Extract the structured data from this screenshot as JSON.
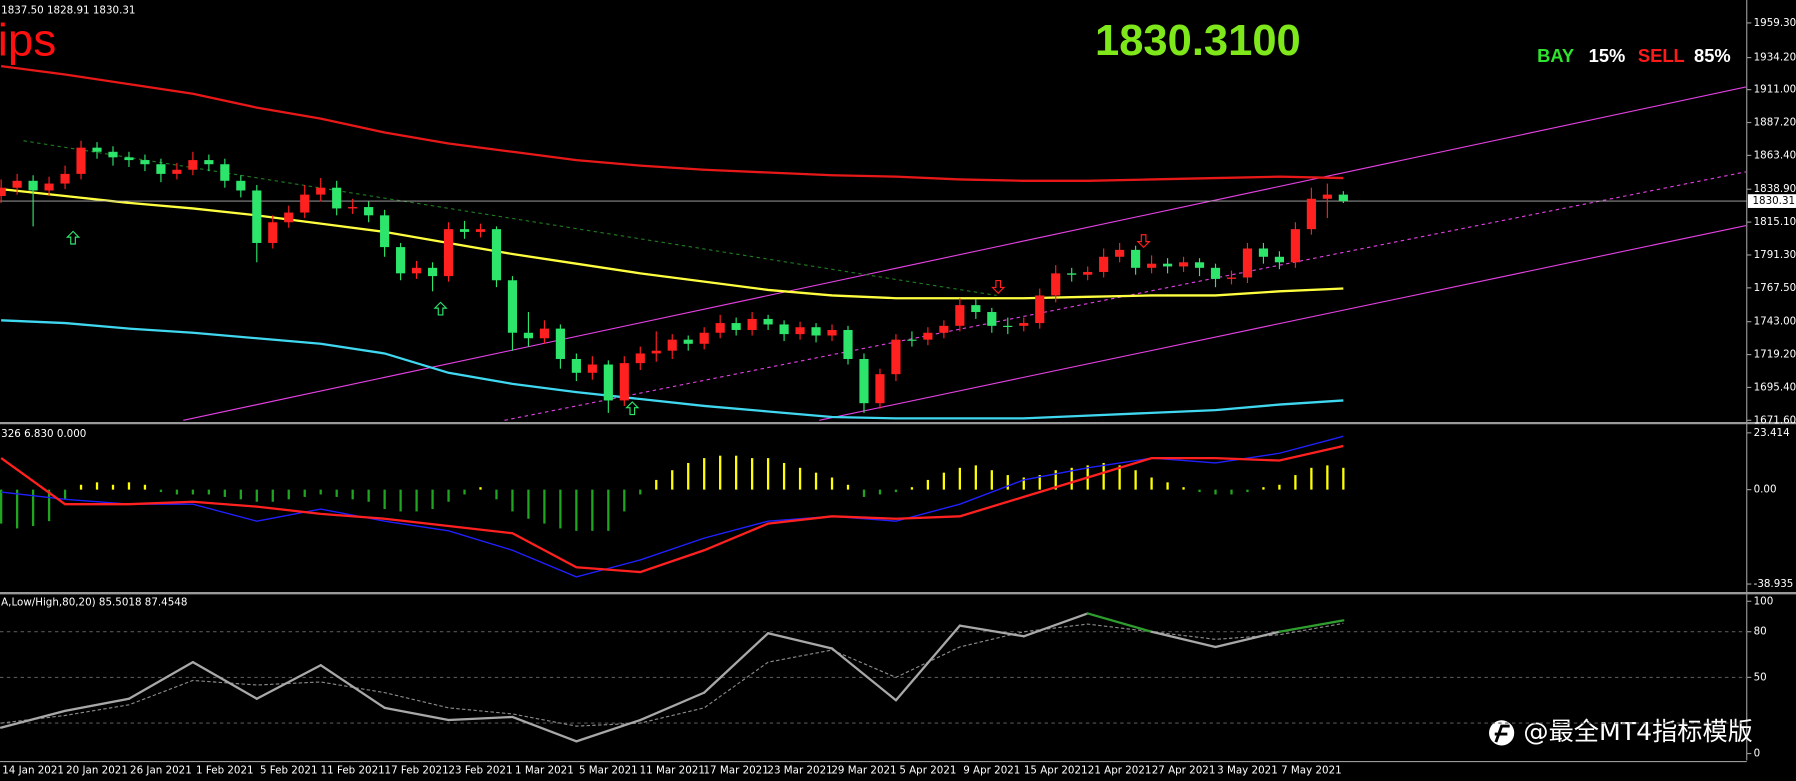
{
  "chart_data": [
    {
      "type": "candlestick",
      "info": "1837.50 1828.91 1830.31",
      "label": "ips",
      "price_text": "1830.3100",
      "buy_label": "BAY",
      "buy_pct": "15%",
      "sell_label": "SELL",
      "sell_pct": "85%",
      "watermark": "@最全MT4指标模版",
      "categories": [
        null,
        null,
        "14 Jan 2021",
        null,
        null,
        null,
        "20 Jan 2021",
        null,
        null,
        null,
        "26 Jan 2021",
        null,
        null,
        null,
        "1 Feb 2021",
        null,
        null,
        null,
        "5 Feb 2021",
        null,
        null,
        null,
        "11 Feb 2021",
        null,
        null,
        null,
        "17 Feb 2021",
        null,
        null,
        null,
        "23 Feb 2021",
        null,
        null,
        null,
        "1 Mar 2021",
        null,
        null,
        null,
        "5 Mar 2021",
        null,
        null,
        null,
        "11 Mar 2021",
        null,
        null,
        null,
        "17 Mar 2021",
        null,
        null,
        null,
        "23 Mar 2021",
        null,
        null,
        null,
        "29 Mar 2021",
        null,
        null,
        null,
        "5 Apr 2021",
        null,
        null,
        null,
        "9 Apr 2021",
        null,
        null,
        null,
        "15 Apr 2021",
        null,
        null,
        null,
        "21 Apr 2021",
        null,
        null,
        null,
        "27 Apr 2021",
        null,
        null,
        null,
        "3 May 2021",
        null,
        null,
        null,
        "7 May 2021",
        null,
        null
      ],
      "open": [
        1834,
        1840,
        1845,
        1838,
        1843,
        1850,
        1869,
        1866,
        1862,
        1860,
        1857,
        1850,
        1853,
        1860,
        1857,
        1845,
        1838,
        1800,
        1815,
        1822,
        1835,
        1840,
        1825,
        1826,
        1820,
        1797,
        1778,
        1782,
        1776,
        1810,
        1808,
        1810,
        1773,
        1735,
        1731,
        1738,
        1716,
        1706,
        1712,
        1686,
        1713,
        1720,
        1722,
        1730,
        1727,
        1735,
        1742,
        1737,
        1745,
        1741,
        1734,
        1739,
        1733,
        1737,
        1716,
        1684,
        1705,
        1730,
        1730,
        1735,
        1740,
        1755,
        1750,
        1740,
        1740,
        1742,
        1762,
        1778,
        1777,
        1779,
        1790,
        1795,
        1782,
        1785,
        1783,
        1786,
        1782,
        1774,
        1775,
        1796,
        1790,
        1786,
        1810,
        1832,
        1835
      ],
      "high": [
        1846,
        1850,
        1849,
        1848,
        1856,
        1874,
        1873,
        1870,
        1866,
        1864,
        1861,
        1858,
        1866,
        1864,
        1861,
        1849,
        1842,
        1820,
        1827,
        1842,
        1847,
        1845,
        1832,
        1830,
        1824,
        1800,
        1787,
        1786,
        1815,
        1816,
        1814,
        1812,
        1776,
        1750,
        1744,
        1741,
        1720,
        1718,
        1715,
        1718,
        1725,
        1736,
        1734,
        1733,
        1739,
        1748,
        1746,
        1750,
        1748,
        1744,
        1743,
        1742,
        1741,
        1740,
        1720,
        1709,
        1734,
        1736,
        1739,
        1744,
        1760,
        1759,
        1753,
        1746,
        1746,
        1767,
        1784,
        1782,
        1783,
        1796,
        1800,
        1798,
        1791,
        1789,
        1790,
        1789,
        1785,
        1780,
        1800,
        1800,
        1794,
        1815,
        1840,
        1843,
        1837.5
      ],
      "low": [
        1829,
        1835,
        1812,
        1834,
        1839,
        1846,
        1861,
        1856,
        1855,
        1852,
        1844,
        1846,
        1849,
        1852,
        1840,
        1833,
        1786,
        1796,
        1811,
        1818,
        1830,
        1820,
        1821,
        1815,
        1790,
        1773,
        1774,
        1765,
        1772,
        1803,
        1804,
        1768,
        1722,
        1725,
        1727,
        1709,
        1700,
        1701,
        1677,
        1682,
        1708,
        1714,
        1716,
        1722,
        1723,
        1731,
        1733,
        1733,
        1737,
        1729,
        1730,
        1728,
        1729,
        1712,
        1677,
        1680,
        1700,
        1725,
        1726,
        1731,
        1736,
        1745,
        1735,
        1734,
        1736,
        1738,
        1757,
        1772,
        1773,
        1775,
        1786,
        1777,
        1778,
        1778,
        1779,
        1776,
        1768,
        1770,
        1771,
        1785,
        1781,
        1782,
        1806,
        1818,
        1828.91
      ],
      "close": [
        1840,
        1845,
        1838,
        1843,
        1850,
        1869,
        1866,
        1862,
        1860,
        1857,
        1850,
        1853,
        1860,
        1857,
        1845,
        1838,
        1800,
        1815,
        1822,
        1835,
        1840,
        1825,
        1826,
        1820,
        1797,
        1778,
        1782,
        1776,
        1810,
        1808,
        1810,
        1773,
        1735,
        1731,
        1738,
        1716,
        1706,
        1712,
        1686,
        1713,
        1720,
        1722,
        1730,
        1727,
        1735,
        1742,
        1737,
        1745,
        1741,
        1734,
        1739,
        1733,
        1737,
        1716,
        1684,
        1705,
        1730,
        1730,
        1735,
        1740,
        1755,
        1750,
        1740,
        1740,
        1742,
        1762,
        1778,
        1777,
        1779,
        1790,
        1795,
        1782,
        1785,
        1783,
        1786,
        1782,
        1774,
        1775,
        1796,
        1790,
        1786,
        1810,
        1832,
        1835,
        1830.31
      ],
      "up_color": "#ff2020",
      "down_color": "#2ee56c",
      "lines": [
        {
          "color": "#e81818",
          "values": [
            1928,
            1922,
            1915,
            1908,
            1898,
            1890,
            1880,
            1872,
            1866,
            1860,
            1856,
            1853,
            1851,
            1849,
            1848,
            1846,
            1845,
            1845,
            1846,
            1847,
            1848,
            1847
          ]
        },
        {
          "color": "#ffff40",
          "values": [
            1839,
            1834,
            1829,
            1825,
            1820,
            1814,
            1808,
            1800,
            1792,
            1785,
            1778,
            1772,
            1766,
            1762,
            1760,
            1760,
            1760,
            1761,
            1762,
            1762,
            1765,
            1767
          ]
        },
        {
          "color": "#40d8f0",
          "values": [
            1744,
            1742,
            1738,
            1735,
            1731,
            1727,
            1720,
            1706,
            1698,
            1692,
            1687,
            1682,
            1678,
            1674,
            1673,
            1673,
            1673,
            1675,
            1677,
            1679,
            1683,
            1686
          ]
        }
      ],
      "channels": [
        {
          "color": "#e040e0",
          "dashed": false,
          "x": [
            11.4,
            109.2
          ],
          "y": [
            1671.6,
            1913
          ]
        },
        {
          "color": "#e040e0",
          "dashed": true,
          "x": [
            31.5,
            109.2
          ],
          "y": [
            1671.6,
            1851.5
          ]
        },
        {
          "color": "#e040e0",
          "dashed": false,
          "x": [
            51.2,
            109.2
          ],
          "y": [
            1671.6,
            1812.6
          ]
        },
        {
          "color": "#1f7a1f",
          "dashed": true,
          "x": [
            1.4,
            62.3
          ],
          "y": [
            1874,
            1762
          ]
        }
      ],
      "arrows_up": {
        "color": "#2ee56c",
        "x": [
          4.5,
          27.5,
          39.5
        ],
        "y": [
          1803.4,
          1752,
          1679.9
        ]
      },
      "arrows_down": {
        "color": "#ff2020",
        "x": [
          62.4,
          71.5
        ],
        "y": [
          1768.6,
          1801.8
        ]
      },
      "current_price": 1830.31,
      "current_price_label": "1830.31",
      "ylim": [
        1670.8,
        1975.9
      ],
      "yticks": [
        {
          "value": 1959.3,
          "label": "1959.30"
        },
        {
          "value": 1934.2,
          "label": "1934.20"
        },
        {
          "value": 1911,
          "label": "1911.00"
        },
        {
          "value": 1887.2,
          "label": "1887.20"
        },
        {
          "value": 1863.4,
          "label": "1863.40"
        },
        {
          "value": 1838.9,
          "label": "1838.90"
        },
        {
          "value": 1815.1,
          "label": "1815.10"
        },
        {
          "value": 1791.3,
          "label": "1791.30"
        },
        {
          "value": 1767.5,
          "label": "1767.50"
        },
        {
          "value": 1743,
          "label": "1743.00"
        },
        {
          "value": 1719.2,
          "label": "1719.20"
        },
        {
          "value": 1695.4,
          "label": "1695.40"
        },
        {
          "value": 1671.6,
          "label": "1671.60"
        }
      ]
    },
    {
      "type": "macd",
      "info": "326 6.830 0.000",
      "values": [
        -14,
        -16,
        -15,
        -13,
        -4,
        2,
        3,
        2,
        3,
        2,
        -1,
        -2,
        -2,
        -2,
        -3,
        -4,
        -5,
        -5,
        -4,
        -3,
        -2,
        -3,
        -4,
        -5,
        -8,
        -9,
        -9,
        -8,
        -5,
        -2,
        1,
        -4,
        -9,
        -12,
        -14,
        -16,
        -17,
        -17,
        -17,
        -9,
        -2,
        4,
        8,
        11,
        13,
        14,
        14,
        13,
        13,
        11,
        9,
        7,
        5,
        2,
        -3,
        -2,
        -1,
        1,
        4,
        7,
        9,
        10,
        8,
        6,
        5,
        6,
        8,
        9,
        10,
        11,
        10,
        8,
        5,
        3,
        1,
        -1,
        -2,
        -2,
        -1,
        1,
        2,
        6,
        9,
        10,
        9
      ],
      "pos_color": "#ffff00",
      "neg_color": "#1fa51f",
      "lines": [
        {
          "color": "#2020ff",
          "values": [
            -1,
            -4,
            -6,
            -6,
            -13,
            -8,
            -13,
            -17,
            -25,
            -36,
            -29,
            -20,
            -13,
            -11,
            -13,
            -6,
            4,
            9,
            13,
            11,
            15,
            22
          ]
        },
        {
          "color": "#ff2020",
          "values": [
            13,
            -6,
            -6,
            -5,
            -7,
            -10,
            -12,
            -15,
            -18,
            -32,
            -34,
            -25,
            -14,
            -11,
            -12,
            -11,
            -3,
            5,
            13,
            13,
            12,
            18
          ]
        }
      ],
      "ylim": [
        -42.24,
        25.77
      ],
      "yticks": [
        23.414,
        {
          "value": 0,
          "label": "0.00"
        },
        -38.935
      ]
    },
    {
      "type": "stochastic",
      "info": "A,Low/High,80,20) 85.5018 87.4548",
      "main": {
        "color": "#a8a8a8",
        "high_color": "#2e9e2e",
        "low_color": "#ff1010",
        "values": [
          17,
          28,
          36,
          60,
          36,
          58,
          30,
          22,
          24,
          8,
          22,
          40,
          79,
          69,
          35,
          84,
          77,
          92,
          80,
          70,
          80,
          87.4548
        ]
      },
      "signal": {
        "color": "#8a8a8a",
        "values": [
          20,
          25,
          32,
          48,
          45,
          47,
          40,
          30,
          26,
          18,
          20,
          30,
          60,
          68,
          50,
          70,
          80,
          85,
          80,
          75,
          78,
          85.5018
        ]
      },
      "levels": [
        20,
        50,
        80
      ],
      "ylim": [
        -4.5,
        103.8
      ],
      "yticks": [
        100,
        80,
        50,
        0
      ]
    }
  ]
}
